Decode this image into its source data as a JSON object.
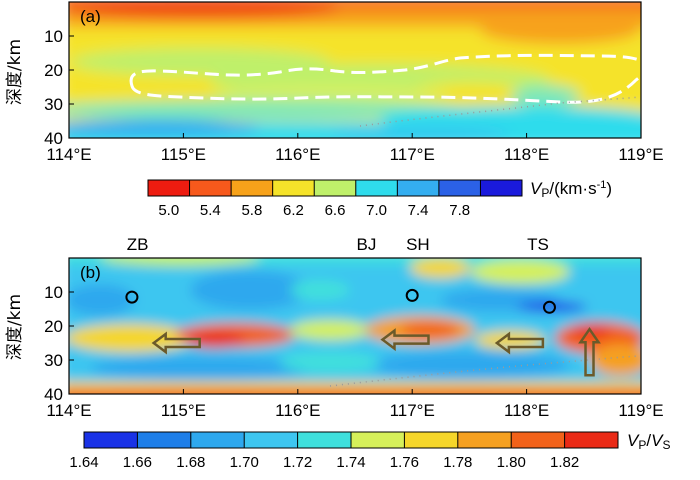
{
  "chart_data": [
    {
      "type": "heatmap",
      "panel_label": "(a)",
      "x_ticks": [
        "114°E",
        "115°E",
        "116°E",
        "117°E",
        "118°E",
        "119°E"
      ],
      "x_values": [
        114,
        115,
        116,
        117,
        118,
        119
      ],
      "xlim": [
        114,
        119
      ],
      "y_ticks": [
        "10",
        "20",
        "30",
        "40"
      ],
      "y_values": [
        10,
        20,
        30,
        40
      ],
      "ylim": [
        0,
        40
      ],
      "ylabel": "深度/km",
      "colorbar": {
        "label": "V_P/(km·s⁻¹)",
        "label_parts": {
          "main": "V",
          "sub": "P",
          "rest": "/(km·s",
          "sup": "-1",
          "end": ")"
        },
        "tick_labels": [
          "5.0",
          "5.4",
          "5.8",
          "6.2",
          "6.6",
          "7.0",
          "7.4",
          "7.8"
        ],
        "range": [
          5.0,
          8.0
        ],
        "colors": [
          "#ee1c10",
          "#f7591c",
          "#f7a21a",
          "#f5e32a",
          "#bff06a",
          "#2fdcec",
          "#34aef0",
          "#2b61e6",
          "#1a1adc"
        ]
      }
    },
    {
      "type": "heatmap",
      "panel_label": "(b)",
      "x_ticks": [
        "114°E",
        "115°E",
        "116°E",
        "117°E",
        "118°E",
        "119°E"
      ],
      "x_values": [
        114,
        115,
        116,
        117,
        118,
        119
      ],
      "xlim": [
        114,
        119
      ],
      "y_ticks": [
        "10",
        "20",
        "30",
        "40"
      ],
      "y_values": [
        10,
        20,
        30,
        40
      ],
      "ylim": [
        0,
        40
      ],
      "ylabel": "深度/km",
      "stations": [
        {
          "name": "ZB",
          "lon": 114.6
        },
        {
          "name": "BJ",
          "lon": 116.6
        },
        {
          "name": "SH",
          "lon": 117.05
        },
        {
          "name": "TS",
          "lon": 118.1
        }
      ],
      "circles": [
        {
          "lon": 114.55,
          "depth": 11.5
        },
        {
          "lon": 117.0,
          "depth": 11.0
        },
        {
          "lon": 118.2,
          "depth": 14.5
        }
      ],
      "arrows": [
        {
          "lon": 114.95,
          "depth": 25,
          "direction": "left"
        },
        {
          "lon": 116.95,
          "depth": 24,
          "direction": "left"
        },
        {
          "lon": 117.95,
          "depth": 25,
          "direction": "left"
        },
        {
          "lon": 118.55,
          "depth": 28,
          "direction": "up"
        }
      ],
      "colorbar": {
        "label": "V_P/V_S",
        "label_parts": {
          "main": "V",
          "sub": "P",
          "rest": "/",
          "main2": "V",
          "sub2": "S"
        },
        "tick_labels": [
          "1.64",
          "1.66",
          "1.68",
          "1.70",
          "1.72",
          "1.74",
          "1.76",
          "1.78",
          "1.80",
          "1.82"
        ],
        "range": [
          1.64,
          1.84
        ],
        "colors": [
          "#1a32e6",
          "#1e7ee8",
          "#2ea8ee",
          "#3ec6f0",
          "#3fe0dc",
          "#d6f05a",
          "#f5d62a",
          "#f5a020",
          "#f2621a",
          "#ea2a16"
        ]
      }
    }
  ]
}
